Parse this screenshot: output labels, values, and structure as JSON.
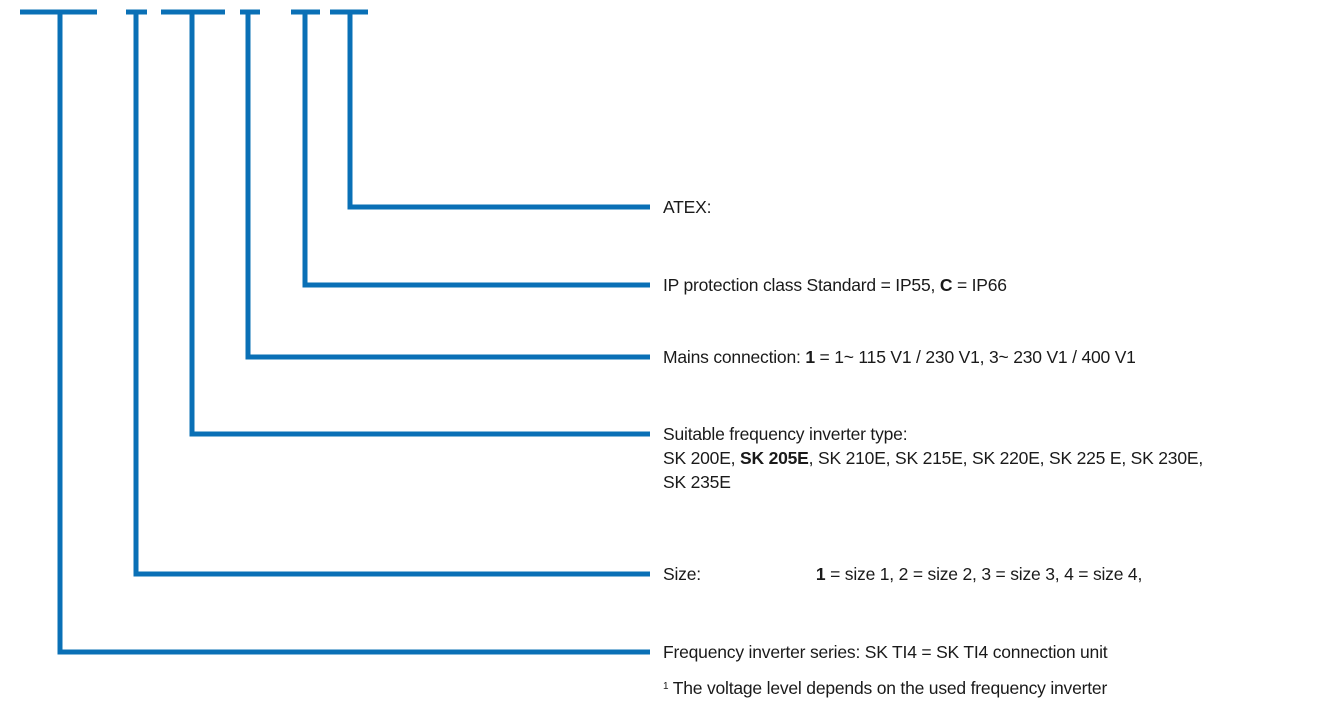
{
  "accent_color": "#0A70B6",
  "codes": [
    {
      "label": "ATEX:"
    },
    {
      "text": "IP protection class Standard = IP55, ",
      "bold": "C",
      "tail": " = IP66"
    },
    {
      "text": "Mains connection: ",
      "bold": "1",
      "tail": " = 1~ 115 V1 / 230 V1, 3~ 230 V1 / 400 V1"
    },
    {
      "line1": "Suitable frequency inverter type:",
      "line2_pre": "SK 200E, ",
      "line2_bold": "SK 205E",
      "line2_post": ", SK 210E, SK 215E, SK 220E, SK 225 E, SK 230E,",
      "line3": "SK 235E"
    },
    {
      "label": "Size:",
      "bold": "1",
      "tail": " = size 1, 2 = size 2, 3 = size 3, 4 = size 4,"
    },
    {
      "text": "Frequency inverter series: SK TI4 = SK TI4 connection unit"
    }
  ],
  "footnote": {
    "mark": "1",
    "text": " The voltage level depends on the used frequency inverter"
  }
}
